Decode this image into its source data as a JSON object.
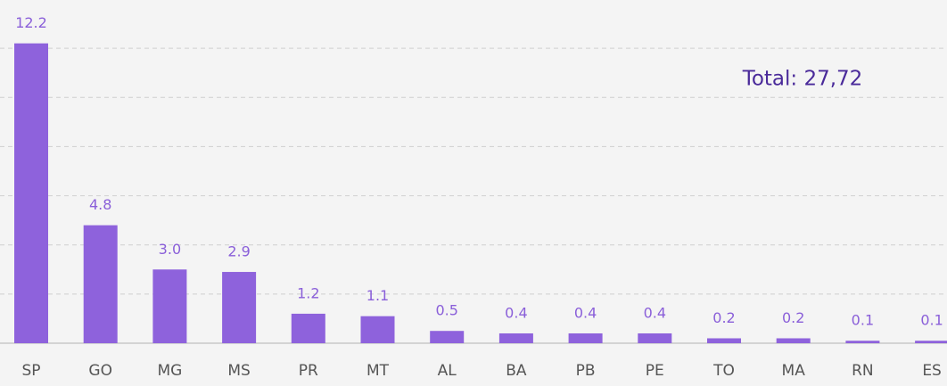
{
  "chart_data": {
    "type": "bar",
    "annotation": "Total: 27,72",
    "categories": [
      "SP",
      "GO",
      "MG",
      "MS",
      "PR",
      "MT",
      "AL",
      "BA",
      "PB",
      "PE",
      "TO",
      "MA",
      "RN",
      "ES"
    ],
    "values": [
      12.2,
      4.8,
      3.0,
      2.9,
      1.2,
      1.1,
      0.5,
      0.4,
      0.4,
      0.4,
      0.2,
      0.2,
      0.1,
      0.1
    ],
    "value_labels": [
      "12.2",
      "4.8",
      "3.0",
      "2.9",
      "1.2",
      "1.1",
      "0.5",
      "0.4",
      "0.4",
      "0.4",
      "0.2",
      "0.2",
      "0.1",
      "0.1"
    ],
    "color": "#8e62dc",
    "ylim": [
      0,
      14
    ],
    "yticks": [
      2,
      4,
      6,
      8,
      10,
      12
    ],
    "grid": true
  }
}
